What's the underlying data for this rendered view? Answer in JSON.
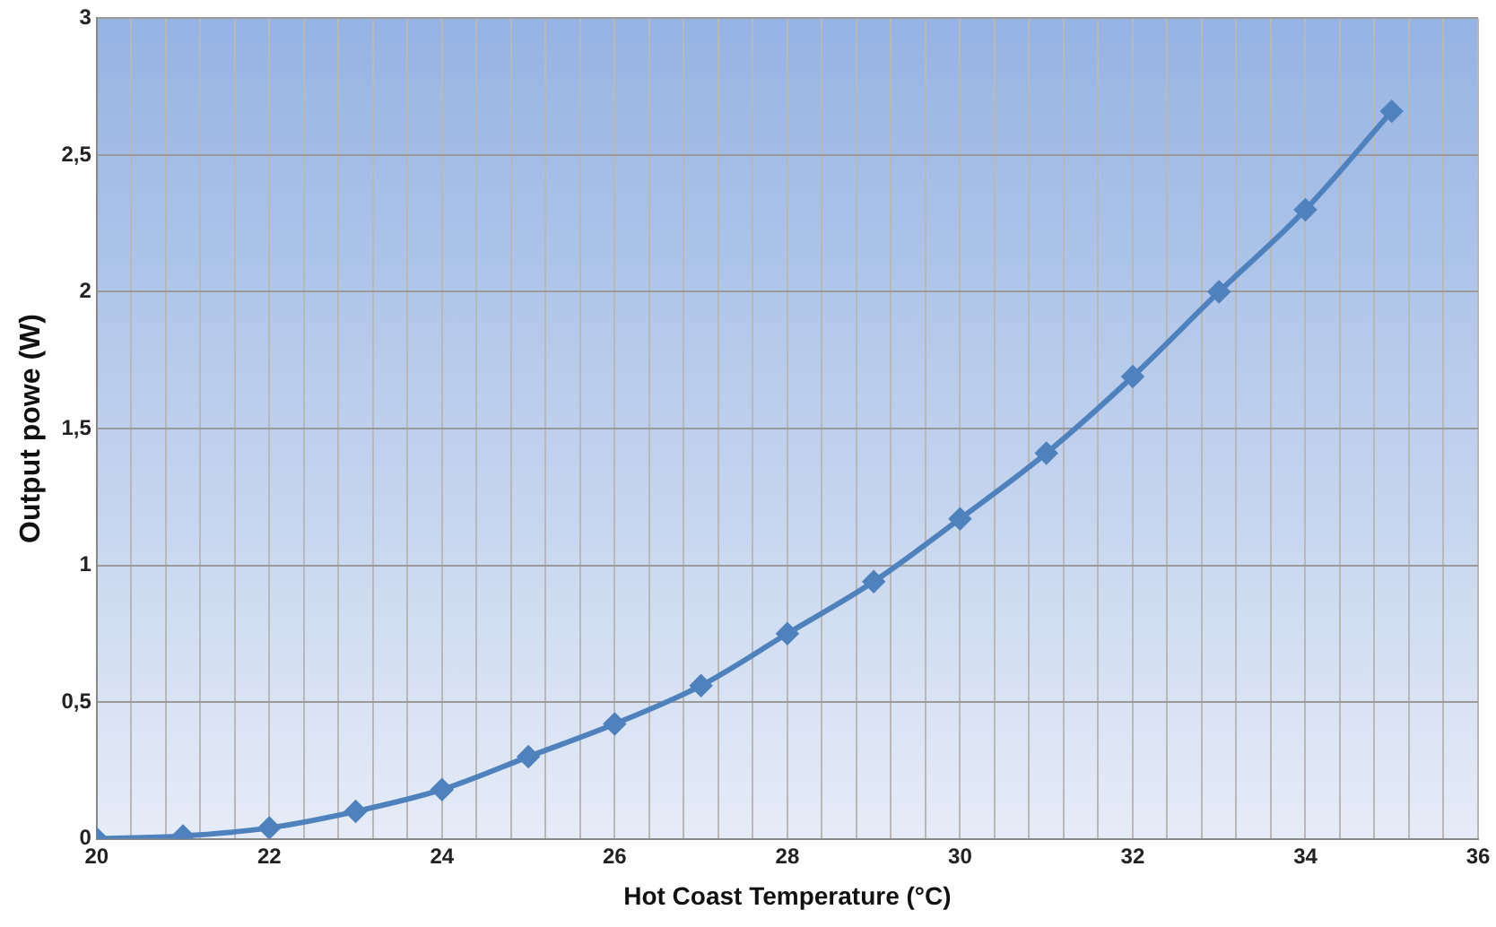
{
  "chart_data": {
    "type": "line",
    "xlabel": "Hot Coast Temperature (°C)",
    "ylabel": "Output powe (W)",
    "x": [
      20,
      21,
      22,
      23,
      24,
      25,
      26,
      27,
      28,
      29,
      30,
      31,
      32,
      33,
      34,
      35
    ],
    "series": [
      {
        "color": "#4f81bd",
        "values": [
          0,
          0.01,
          0.04,
          0.1,
          0.18,
          0.3,
          0.42,
          0.56,
          0.75,
          0.94,
          1.17,
          1.41,
          1.69,
          2.0,
          2.3,
          2.66
        ]
      }
    ],
    "xlim": [
      20,
      36
    ],
    "ylim": [
      0,
      3
    ],
    "xticks": [
      20,
      {
        "value": 20.4,
        "label": null
      },
      {
        "value": 20.8,
        "label": null
      },
      {
        "value": 21.2,
        "label": null
      },
      {
        "value": 21.6,
        "label": null
      },
      22,
      {
        "value": 22.4,
        "label": null
      },
      {
        "value": 22.8,
        "label": null
      },
      {
        "value": 23.2,
        "label": null
      },
      {
        "value": 23.6,
        "label": null
      },
      24,
      {
        "value": 24.4,
        "label": null
      },
      {
        "value": 24.8,
        "label": null
      },
      {
        "value": 25.2,
        "label": null
      },
      {
        "value": 25.6,
        "label": null
      },
      26,
      {
        "value": 26.4,
        "label": null
      },
      {
        "value": 26.8,
        "label": null
      },
      {
        "value": 27.2,
        "label": null
      },
      {
        "value": 27.6,
        "label": null
      },
      28,
      {
        "value": 28.4,
        "label": null
      },
      {
        "value": 28.8,
        "label": null
      },
      {
        "value": 29.2,
        "label": null
      },
      {
        "value": 29.6,
        "label": null
      },
      30,
      {
        "value": 30.4,
        "label": null
      },
      {
        "value": 30.8,
        "label": null
      },
      {
        "value": 31.2,
        "label": null
      },
      {
        "value": 31.6,
        "label": null
      },
      32,
      {
        "value": 32.4,
        "label": null
      },
      {
        "value": 32.8,
        "label": null
      },
      {
        "value": 33.2,
        "label": null
      },
      {
        "value": 33.6,
        "label": null
      },
      34,
      {
        "value": 34.4,
        "label": null
      },
      {
        "value": 34.8,
        "label": null
      },
      {
        "value": 35.2,
        "label": null
      },
      {
        "value": 35.6,
        "label": null
      },
      36
    ],
    "yticks": [
      0,
      {
        "value": 0.5,
        "label": "0,5"
      },
      1,
      {
        "value": 1.5,
        "label": "1,5"
      },
      2,
      {
        "value": 2.5,
        "label": "2,5"
      },
      3
    ],
    "grid": true,
    "marker": "diamond",
    "line_style": "solid",
    "legend": false
  }
}
